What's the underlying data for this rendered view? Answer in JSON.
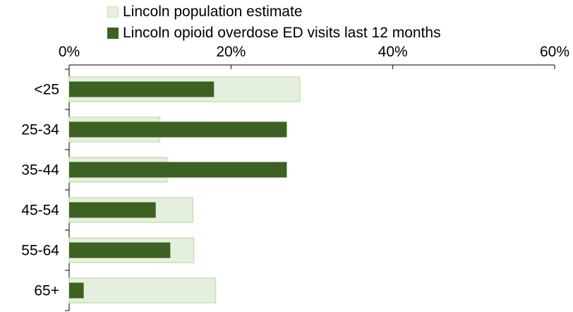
{
  "chart_data": {
    "type": "bar",
    "orientation": "horizontal",
    "categories": [
      "<25",
      "25-34",
      "35-44",
      "45-54",
      "55-64",
      "65+"
    ],
    "series": [
      {
        "name": "Lincoln population estimate",
        "values": [
          28.5,
          11.2,
          12.1,
          15.3,
          15.4,
          18.1
        ],
        "color": "#e5efdd",
        "border": "#c6e0b4"
      },
      {
        "name": "Lincoln opioid overdose ED visits last 12 months",
        "values": [
          17.9,
          26.9,
          26.9,
          10.7,
          12.5,
          1.8
        ],
        "color": "#3d6122"
      }
    ],
    "x_ticks": [
      "0%",
      "20%",
      "40%",
      "60%"
    ],
    "xlim": [
      0,
      60
    ],
    "tick_step": 20,
    "xlabel": "",
    "ylabel": "",
    "title": "",
    "grid": false,
    "legend_position": "top"
  }
}
